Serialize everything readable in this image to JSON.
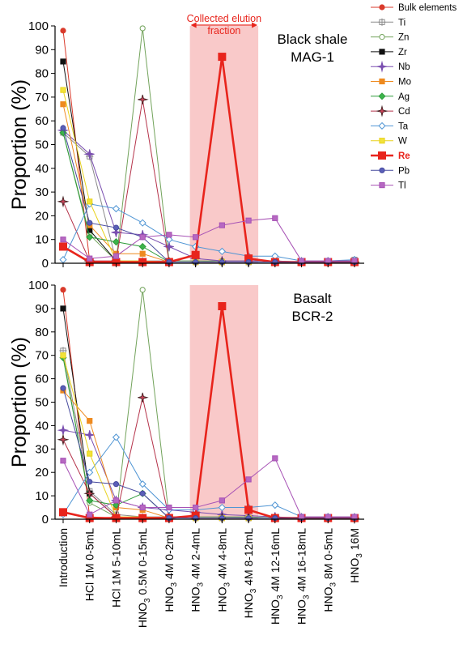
{
  "chart_data": [
    {
      "type": "line",
      "ylabel": "Proportion (%)",
      "panel_label": [
        "Black shale",
        "MAG-1"
      ],
      "ylim": [
        0,
        100
      ],
      "yticks": [
        0,
        10,
        20,
        30,
        40,
        50,
        60,
        70,
        80,
        90,
        100
      ],
      "highlight": {
        "label": [
          "Collected elution",
          "fraction"
        ],
        "from": "HNO3 4M 2-4mL",
        "to": "HNO3 4M 8-12mL"
      },
      "series": [
        {
          "name": "Bulk elements",
          "values": [
            98,
            1,
            0.5,
            0.5,
            0.5,
            0.5,
            0.5,
            0.5,
            0.5,
            0.5,
            0.5,
            0.5
          ]
        },
        {
          "name": "Ti",
          "values": [
            55,
            45,
            1,
            1,
            1,
            1,
            0.5,
            0.5,
            0.5,
            0.5,
            0.5,
            1.5
          ]
        },
        {
          "name": "Zn",
          "values": [
            55,
            12,
            1,
            99,
            1,
            1,
            1,
            1,
            1,
            0.5,
            0.5,
            0.5
          ]
        },
        {
          "name": "Zr",
          "values": [
            85,
            14,
            1,
            0.5,
            0.5,
            0.5,
            0.5,
            0.5,
            0.5,
            0.5,
            0.5,
            0.5
          ]
        },
        {
          "name": "Nb",
          "values": [
            56,
            46,
            13,
            12,
            7,
            2,
            1,
            1,
            1,
            0.5,
            0.5,
            0.5
          ]
        },
        {
          "name": "Mo",
          "values": [
            67,
            16,
            4,
            4,
            0.5,
            0.5,
            0.5,
            0.5,
            0.5,
            0.5,
            0.5,
            0.5
          ]
        },
        {
          "name": "Ag",
          "values": [
            55,
            11,
            9,
            7,
            0.5,
            0.5,
            0.5,
            0.5,
            0.5,
            0.5,
            0.5,
            0.5
          ]
        },
        {
          "name": "Cd",
          "values": [
            26,
            1,
            1,
            69,
            0.5,
            0.5,
            0.5,
            0.5,
            0.5,
            0.5,
            0.5,
            0.5
          ]
        },
        {
          "name": "Ta",
          "values": [
            1.5,
            25,
            23,
            17,
            10,
            7,
            5,
            3,
            3,
            1,
            1,
            1.5
          ]
        },
        {
          "name": "W",
          "values": [
            73,
            26,
            1,
            1,
            0.5,
            0.5,
            0.5,
            0.5,
            0.5,
            0.5,
            0.5,
            0.5
          ]
        },
        {
          "name": "Re",
          "values": [
            7,
            0.5,
            0.5,
            0.5,
            0.5,
            3.5,
            87,
            2,
            0.5,
            0.5,
            0.5,
            0.5
          ]
        },
        {
          "name": "Pb",
          "values": [
            57,
            17,
            15,
            11,
            0.5,
            0.5,
            0.5,
            0.5,
            0.5,
            0.5,
            0.5,
            0.5
          ]
        },
        {
          "name": "Tl",
          "values": [
            10,
            2,
            3,
            11,
            12,
            11,
            16,
            18,
            19,
            1,
            1,
            1
          ]
        }
      ]
    },
    {
      "type": "line",
      "ylabel": "Proportion (%)",
      "panel_label": [
        "Basalt",
        "BCR-2"
      ],
      "ylim": [
        0,
        100
      ],
      "yticks": [
        0,
        10,
        20,
        30,
        40,
        50,
        60,
        70,
        80,
        90,
        100
      ],
      "highlight": {
        "from": "HNO3 4M 2-4mL",
        "to": "HNO3 4M 8-12mL"
      },
      "series": [
        {
          "name": "Bulk elements",
          "values": [
            98,
            1,
            0.5,
            0.5,
            0.5,
            0.5,
            0.5,
            0.5,
            0.5,
            0.5,
            0.5,
            0.5
          ]
        },
        {
          "name": "Ti",
          "values": [
            72,
            12,
            2,
            1,
            1,
            1,
            1,
            0.5,
            0.5,
            0.5,
            0.5,
            0.5
          ]
        },
        {
          "name": "Zn",
          "values": [
            70,
            7,
            1,
            98,
            1,
            1,
            1,
            1,
            0.5,
            0.5,
            0.5,
            0.5
          ]
        },
        {
          "name": "Zr",
          "values": [
            90,
            11,
            1,
            0.5,
            0.5,
            0.5,
            0.5,
            0.5,
            0.5,
            0.5,
            0.5,
            0.5
          ]
        },
        {
          "name": "Nb",
          "values": [
            38,
            36,
            8,
            5,
            4,
            3,
            2,
            1.5,
            1,
            0.5,
            0.5,
            0.5
          ]
        },
        {
          "name": "Mo",
          "values": [
            55,
            42,
            5,
            4,
            0.5,
            0.5,
            0.5,
            0.5,
            0.5,
            0.5,
            0.5,
            0.5
          ]
        },
        {
          "name": "Ag",
          "values": [
            69,
            8,
            6,
            11,
            0.5,
            0.5,
            0.5,
            0.5,
            0.5,
            0.5,
            0.5,
            0.5
          ]
        },
        {
          "name": "Cd",
          "values": [
            34,
            11,
            1,
            52,
            0.5,
            0.5,
            0.5,
            0.5,
            0.5,
            0.5,
            0.5,
            0.5
          ]
        },
        {
          "name": "Ta",
          "values": [
            2,
            20,
            35,
            15,
            4,
            4,
            5,
            5,
            6,
            1,
            1,
            1
          ]
        },
        {
          "name": "W",
          "values": [
            70,
            28,
            1,
            1,
            0.5,
            0.5,
            0.5,
            0.5,
            0.5,
            0.5,
            0.5,
            0.5
          ]
        },
        {
          "name": "Re",
          "values": [
            3,
            0.5,
            0.5,
            0.5,
            0.5,
            1.5,
            91,
            4,
            0.5,
            0.5,
            0.5,
            0.5
          ]
        },
        {
          "name": "Pb",
          "values": [
            56,
            16,
            15,
            11,
            0.5,
            0.5,
            0.5,
            0.5,
            0.5,
            0.5,
            0.5,
            0.5
          ]
        },
        {
          "name": "Tl",
          "values": [
            25,
            2,
            8,
            5,
            5,
            5,
            8,
            17,
            26,
            1,
            1,
            1
          ]
        }
      ]
    }
  ],
  "categories": [
    {
      "main": "Introduction",
      "sub": ""
    },
    {
      "main": "HCl 1M 0-5mL",
      "sub": ""
    },
    {
      "main": "HCl 1M 5-10mL",
      "sub": ""
    },
    {
      "main": "HNO",
      "sub": "3",
      "tail": " 0.5M 0-15mL"
    },
    {
      "main": "HNO",
      "sub": "3",
      "tail": " 4M 0-2mL"
    },
    {
      "main": "HNO",
      "sub": "3",
      "tail": " 4M 2-4mL"
    },
    {
      "main": "HNO",
      "sub": "3",
      "tail": " 4M 4-8mL"
    },
    {
      "main": "HNO",
      "sub": "3",
      "tail": " 4M 8-12mL"
    },
    {
      "main": "HNO",
      "sub": "3",
      "tail": " 4M 12-16mL"
    },
    {
      "main": "HNO",
      "sub": "3",
      "tail": " 4M 16-18mL"
    },
    {
      "main": "HNO",
      "sub": "3",
      "tail": " 8M 0-5mL"
    },
    {
      "main": "HNO",
      "sub": "3",
      "tail": " 16M"
    }
  ],
  "legend": {
    "placement": "right",
    "entries": [
      {
        "name": "Bulk elements",
        "color": "#d93a2b",
        "marker": "circle",
        "fill": "#d93a2b",
        "emphasis": false
      },
      {
        "name": "Ti",
        "color": "#8a8a8a",
        "marker": "crosssquare",
        "fill": "#ffffff",
        "emphasis": false
      },
      {
        "name": "Zn",
        "color": "#72a35b",
        "marker": "circle",
        "fill": "#ffffff",
        "emphasis": false
      },
      {
        "name": "Zr",
        "color": "#111111",
        "marker": "square",
        "fill": "#111111",
        "emphasis": false
      },
      {
        "name": "Nb",
        "color": "#7a4fb0",
        "marker": "star",
        "fill": "#7a4fb0",
        "emphasis": false
      },
      {
        "name": "Mo",
        "color": "#ee8a1f",
        "marker": "square",
        "fill": "#ee8a1f",
        "emphasis": false
      },
      {
        "name": "Ag",
        "color": "#2e9b3a",
        "marker": "diamond",
        "fill": "#3cb44b",
        "emphasis": false
      },
      {
        "name": "Cd",
        "color": "#b5334a",
        "marker": "star4",
        "fill": "#c9445a",
        "emphasis": false
      },
      {
        "name": "Ta",
        "color": "#4f95d4",
        "marker": "diamond",
        "fill": "#ffffff",
        "emphasis": false
      },
      {
        "name": "W",
        "color": "#e8d21c",
        "marker": "square",
        "fill": "#f2e33a",
        "emphasis": false
      },
      {
        "name": "Re",
        "color": "#e8241c",
        "marker": "square",
        "fill": "#e8241c",
        "emphasis": true
      },
      {
        "name": "Pb",
        "color": "#474a9e",
        "marker": "circle",
        "fill": "#5a5fb8",
        "emphasis": false
      },
      {
        "name": "Tl",
        "color": "#a752b5",
        "marker": "square",
        "fill": "#b668c2",
        "emphasis": false
      }
    ]
  },
  "colors": {
    "highlight_fill": "#f9c9c9",
    "highlight_label": "#e8241c",
    "axis": "#000000"
  }
}
